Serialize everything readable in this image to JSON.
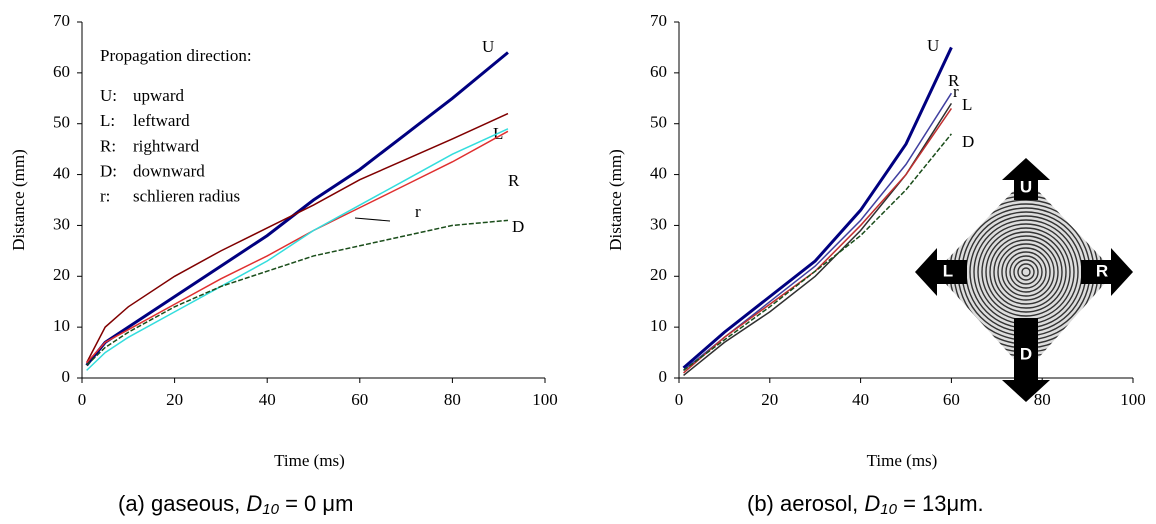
{
  "chart_data": [
    {
      "type": "line",
      "x_label": "Time (ms)",
      "y_label": "Distance (mm)",
      "xlim": [
        0,
        100
      ],
      "xticks": [
        0,
        20,
        40,
        60,
        80,
        100
      ],
      "ylim": [
        0,
        70
      ],
      "yticks": [
        0,
        10,
        20,
        30,
        40,
        50,
        60,
        70
      ],
      "caption": {
        "prefix": "(a) gaseous, ",
        "symbol": "D",
        "subscript": "10",
        "suffix": " = 0 μm"
      },
      "legend_title": "Propagation direction:",
      "legend_items": [
        {
          "key": "U:",
          "text": "upward"
        },
        {
          "key": "L:",
          "text": "leftward"
        },
        {
          "key": "R:",
          "text": "rightward"
        },
        {
          "key": "D:",
          "text": "downward"
        },
        {
          "key": "r:",
          "text": "schlieren radius"
        }
      ],
      "series": [
        {
          "name": "U",
          "color": "#000080",
          "x": [
            1,
            5,
            10,
            20,
            30,
            40,
            50,
            60,
            70,
            80,
            92
          ],
          "values": [
            2.5,
            7,
            10,
            16,
            22,
            28,
            35,
            41,
            48,
            55,
            64
          ]
        },
        {
          "name": "L",
          "color": "#800000",
          "x": [
            1,
            5,
            10,
            20,
            30,
            40,
            50,
            60,
            70,
            80,
            92
          ],
          "values": [
            3,
            10,
            14,
            20,
            25,
            29.5,
            34,
            39,
            43,
            47,
            52
          ]
        },
        {
          "name": "R",
          "color": "#e03030",
          "x": [
            1,
            5,
            10,
            20,
            30,
            40,
            50,
            60,
            70,
            80,
            92
          ],
          "values": [
            3,
            7,
            9.5,
            14.5,
            19.5,
            24,
            29,
            33.5,
            38,
            42.5,
            48.5
          ]
        },
        {
          "name": "r",
          "color": "#33dddd",
          "x": [
            1,
            5,
            10,
            20,
            30,
            40,
            50,
            60,
            70,
            80,
            92
          ],
          "values": [
            1.5,
            5,
            8,
            13,
            18,
            23,
            29,
            34,
            39,
            44,
            49
          ]
        },
        {
          "name": "D",
          "color": "#1a4d1a",
          "x": [
            1,
            5,
            10,
            20,
            30,
            40,
            50,
            60,
            70,
            80,
            92
          ],
          "values": [
            2.5,
            6,
            9,
            14,
            18,
            21,
            24,
            26,
            28,
            30,
            31
          ]
        }
      ]
    },
    {
      "type": "line",
      "x_label": "Time (ms)",
      "y_label": "Distance (mm)",
      "xlim": [
        0,
        100
      ],
      "xticks": [
        0,
        20,
        40,
        60,
        80,
        100
      ],
      "ylim": [
        0,
        70
      ],
      "yticks": [
        0,
        10,
        20,
        30,
        40,
        50,
        60,
        70
      ],
      "caption": {
        "prefix": "(b) aerosol, ",
        "symbol": "D",
        "subscript": "10",
        "suffix": " = 13μm."
      },
      "inset_labels": [
        "U",
        "L",
        "R",
        "D"
      ],
      "series": [
        {
          "name": "U",
          "color": "#000080",
          "x": [
            1,
            10,
            20,
            30,
            40,
            50,
            60
          ],
          "values": [
            2,
            9,
            16,
            23,
            33,
            46,
            65
          ]
        },
        {
          "name": "R",
          "color": "#4040a0",
          "x": [
            1,
            10,
            20,
            30,
            40,
            50,
            60
          ],
          "values": [
            1.5,
            8,
            15,
            22,
            31,
            42,
            56
          ]
        },
        {
          "name": "r",
          "color": "#303030",
          "x": [
            1,
            10,
            20,
            30,
            40,
            50,
            60
          ],
          "values": [
            0.5,
            7,
            13,
            20,
            29,
            40,
            54
          ]
        },
        {
          "name": "L",
          "color": "#c03030",
          "x": [
            1,
            10,
            20,
            30,
            40,
            50,
            60
          ],
          "values": [
            1,
            8,
            14.5,
            21,
            30,
            40,
            53
          ]
        },
        {
          "name": "D",
          "color": "#1a4d1a",
          "x": [
            1,
            10,
            20,
            30,
            40,
            50,
            60
          ],
          "values": [
            1.5,
            7.5,
            14,
            21,
            28,
            37,
            48
          ]
        }
      ]
    }
  ]
}
